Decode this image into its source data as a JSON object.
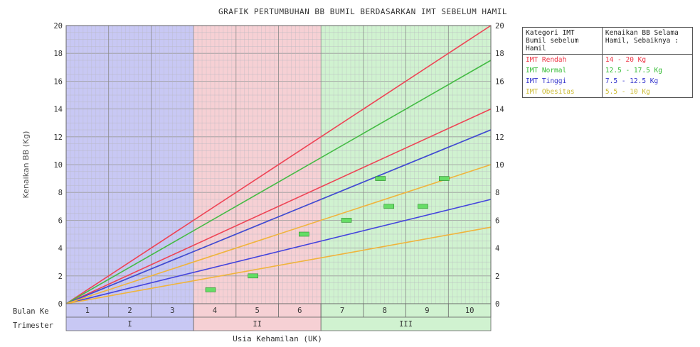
{
  "chart_data": {
    "type": "line",
    "title": "GRAFIK PERTUMBUHAN BB BUMIL BERDASARKAN IMT SEBELUM HAMIL",
    "ylabel": "Kenaikan BB (Kg)",
    "xlabel": "Usia Kehamilan (UK)",
    "ylim": [
      0,
      20
    ],
    "xlim": [
      0,
      10
    ],
    "y_ticks": [
      "0",
      "2",
      "4",
      "6",
      "8",
      "10",
      "12",
      "14",
      "16",
      "18",
      "20"
    ],
    "months_label": "Bulan Ke",
    "months": [
      "1",
      "2",
      "3",
      "4",
      "5",
      "6",
      "7",
      "8",
      "9",
      "10"
    ],
    "trimester_label": "Trimester",
    "trimesters": [
      {
        "label": "I",
        "start": 0,
        "end": 3,
        "color": "#c8c8f4"
      },
      {
        "label": "II",
        "start": 3,
        "end": 6,
        "color": "#f6d0d4"
      },
      {
        "label": "III",
        "start": 6,
        "end": 10,
        "color": "#d0f2d0"
      }
    ],
    "grid": true,
    "series": [
      {
        "color": "#ee4455",
        "x": [
          0,
          10
        ],
        "y": [
          0,
          20
        ]
      },
      {
        "color": "#ee4455",
        "x": [
          0,
          10
        ],
        "y": [
          0,
          14
        ]
      },
      {
        "color": "#44bb44",
        "x": [
          0,
          10
        ],
        "y": [
          0,
          17.5
        ]
      },
      {
        "color": "#44bb44",
        "x": [
          0,
          10
        ],
        "y": [
          0,
          12.5
        ]
      },
      {
        "color": "#4444dd",
        "x": [
          0,
          10
        ],
        "y": [
          0,
          12.5
        ]
      },
      {
        "color": "#4444dd",
        "x": [
          0,
          10
        ],
        "y": [
          0,
          7.5
        ]
      },
      {
        "color": "#f0b43c",
        "x": [
          0,
          10
        ],
        "y": [
          0,
          10
        ]
      },
      {
        "color": "#f0b43c",
        "x": [
          0,
          10
        ],
        "y": [
          0,
          5.5
        ]
      }
    ],
    "points": {
      "color": "#66dd66",
      "x": [
        3.4,
        4.4,
        5.6,
        6.6,
        7.4,
        7.6,
        8.4,
        8.9
      ],
      "y": [
        1,
        2,
        5,
        6,
        9,
        7,
        7,
        9
      ]
    },
    "legend": {
      "header": [
        "Kategori IMT Bumil sebelum Hamil",
        "Kenaikan BB Selama Hamil, Sebaiknya :"
      ],
      "rows": [
        {
          "category": "IMT Rendah",
          "range": "14 - 20 Kg",
          "color": "#ee3344"
        },
        {
          "category": "IMT Normal",
          "range": "12.5 - 17.5 Kg",
          "color": "#33bb33"
        },
        {
          "category": "IMT Tinggi",
          "range": "7.5 - 12.5 Kg",
          "color": "#3333cc"
        },
        {
          "category": "IMT Obesitas",
          "range": "5.5 - 10 Kg",
          "color": "#ccbb33"
        }
      ]
    }
  }
}
